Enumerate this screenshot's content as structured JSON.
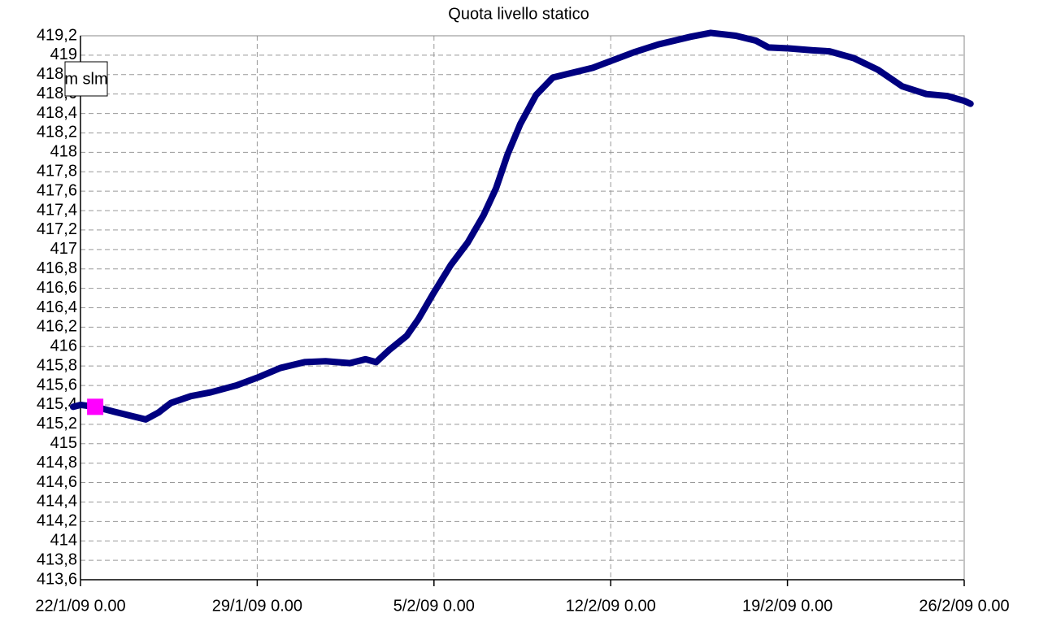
{
  "chart_data": {
    "type": "line",
    "title": "Quota livello statico",
    "ylabel": "m slm",
    "ylim": [
      413.6,
      419.2
    ],
    "yticks": [
      {
        "value": 413.6,
        "label": "413,6"
      },
      {
        "value": 413.8,
        "label": "413,8"
      },
      414,
      {
        "value": 414.2,
        "label": "414,2"
      },
      {
        "value": 414.4,
        "label": "414,4"
      },
      {
        "value": 414.6,
        "label": "414,6"
      },
      {
        "value": 414.8,
        "label": "414,8"
      },
      415,
      {
        "value": 415.2,
        "label": "415,2"
      },
      {
        "value": 415.4,
        "label": "415,4"
      },
      {
        "value": 415.6,
        "label": "415,6"
      },
      {
        "value": 415.8,
        "label": "415,8"
      },
      416,
      {
        "value": 416.2,
        "label": "416,2"
      },
      {
        "value": 416.4,
        "label": "416,4"
      },
      {
        "value": 416.6,
        "label": "416,6"
      },
      {
        "value": 416.8,
        "label": "416,8"
      },
      417,
      {
        "value": 417.2,
        "label": "417,2"
      },
      {
        "value": 417.4,
        "label": "417,4"
      },
      {
        "value": 417.6,
        "label": "417,6"
      },
      {
        "value": 417.8,
        "label": "417,8"
      },
      418,
      {
        "value": 418.2,
        "label": "418,2"
      },
      {
        "value": 418.4,
        "label": "418,4"
      },
      {
        "value": 418.6,
        "label": "418,6"
      },
      {
        "value": 418.8,
        "label": "418,8"
      },
      419,
      {
        "value": 419.2,
        "label": "419,2"
      }
    ],
    "xlim": [
      "2009-01-22T00:00",
      "2009-02-26T00:00"
    ],
    "xticks": [
      {
        "value": "2009-01-22T00:00",
        "label": "22/1/09 0.00"
      },
      {
        "value": "2009-01-29T00:00",
        "label": "29/1/09 0.00"
      },
      {
        "value": "2009-02-05T00:00",
        "label": "5/2/09 0.00"
      },
      {
        "value": "2009-02-12T00:00",
        "label": "12/2/09 0.00"
      },
      {
        "value": "2009-02-19T00:00",
        "label": "19/2/09 0.00"
      },
      {
        "value": "2009-02-26T00:00",
        "label": "26/2/09 0.00"
      }
    ],
    "grid": true,
    "series": [
      {
        "color": "#000080",
        "marker": "line",
        "x": [
          "2009-01-21T17:00",
          "2009-01-22T00:00",
          "2009-01-22T14:00",
          "2009-01-23T08:00",
          "2009-01-23T23:00",
          "2009-01-24T14:00",
          "2009-01-25T02:00",
          "2009-01-25T14:00",
          "2009-01-26T09:00",
          "2009-01-27T04:00",
          "2009-01-28T04:00",
          "2009-01-29T00:00",
          "2009-01-29T22:00",
          "2009-01-30T21:00",
          "2009-01-31T17:00",
          "2009-02-01T16:00",
          "2009-02-02T07:00",
          "2009-02-02T17:00",
          "2009-02-03T06:00",
          "2009-02-03T22:00",
          "2009-02-04T09:00",
          "2009-02-04T23:00",
          "2009-02-05T16:00",
          "2009-02-06T08:00",
          "2009-02-06T23:00",
          "2009-02-07T11:00",
          "2009-02-07T22:00",
          "2009-02-08T10:00",
          "2009-02-09T01:00",
          "2009-02-09T17:00",
          "2009-02-10T08:00",
          "2009-02-11T07:00",
          "2009-02-12T00:00",
          "2009-02-12T22:00",
          "2009-02-13T21:00",
          "2009-02-15T04:00",
          "2009-02-15T23:00",
          "2009-02-16T23:00",
          "2009-02-17T18:00",
          "2009-02-18T06:00",
          "2009-02-19T01:00",
          "2009-02-20T00:00",
          "2009-02-20T16:00",
          "2009-02-21T15:00",
          "2009-02-22T14:00",
          "2009-02-23T13:00",
          "2009-02-24T12:00",
          "2009-02-25T08:00",
          "2009-02-26T00:00",
          "2009-02-26T06:00"
        ],
        "values": [
          415.38,
          415.4,
          415.38,
          415.33,
          415.29,
          415.25,
          415.32,
          415.42,
          415.49,
          415.53,
          415.6,
          415.68,
          415.78,
          415.84,
          415.85,
          415.83,
          415.87,
          415.84,
          415.97,
          416.11,
          416.28,
          416.54,
          416.84,
          417.07,
          417.35,
          417.63,
          417.98,
          418.29,
          418.59,
          418.77,
          418.81,
          418.87,
          418.94,
          419.03,
          419.11,
          419.19,
          419.23,
          419.2,
          419.15,
          419.08,
          419.07,
          419.05,
          419.04,
          418.97,
          418.85,
          418.68,
          418.6,
          418.58,
          418.53,
          418.5
        ]
      },
      {
        "color": "#ff00ff",
        "marker": "square",
        "x": [
          "2009-01-22T14:00"
        ],
        "values": [
          415.38
        ]
      }
    ]
  }
}
